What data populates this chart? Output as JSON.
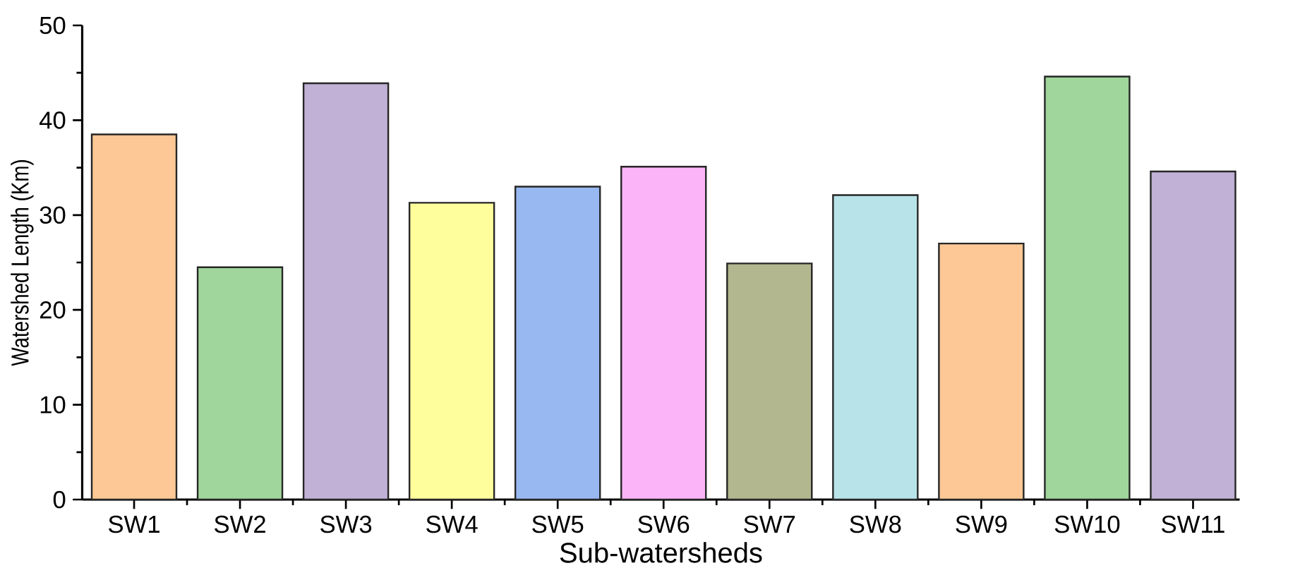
{
  "chart_data": {
    "type": "bar",
    "xlabel": "Sub-watersheds",
    "ylabel": "Watershed Length (Km)",
    "categories": [
      "SW1",
      "SW2",
      "SW3",
      "SW4",
      "SW5",
      "SW6",
      "SW7",
      "SW8",
      "SW9",
      "SW10",
      "SW11"
    ],
    "values": [
      38.5,
      24.5,
      43.9,
      31.3,
      33.0,
      35.1,
      24.9,
      32.1,
      27.0,
      44.6,
      34.6
    ],
    "colors": [
      "#fdc895",
      "#a0d69c",
      "#c1b1d6",
      "#fefe9c",
      "#98b8f1",
      "#fcb4f8",
      "#b3b78f",
      "#b8e3e9",
      "#fdc895",
      "#a0d69c",
      "#c1b1d6"
    ],
    "ylim": [
      0,
      50
    ],
    "yticks": [
      0,
      10,
      20,
      30,
      40,
      50
    ]
  }
}
